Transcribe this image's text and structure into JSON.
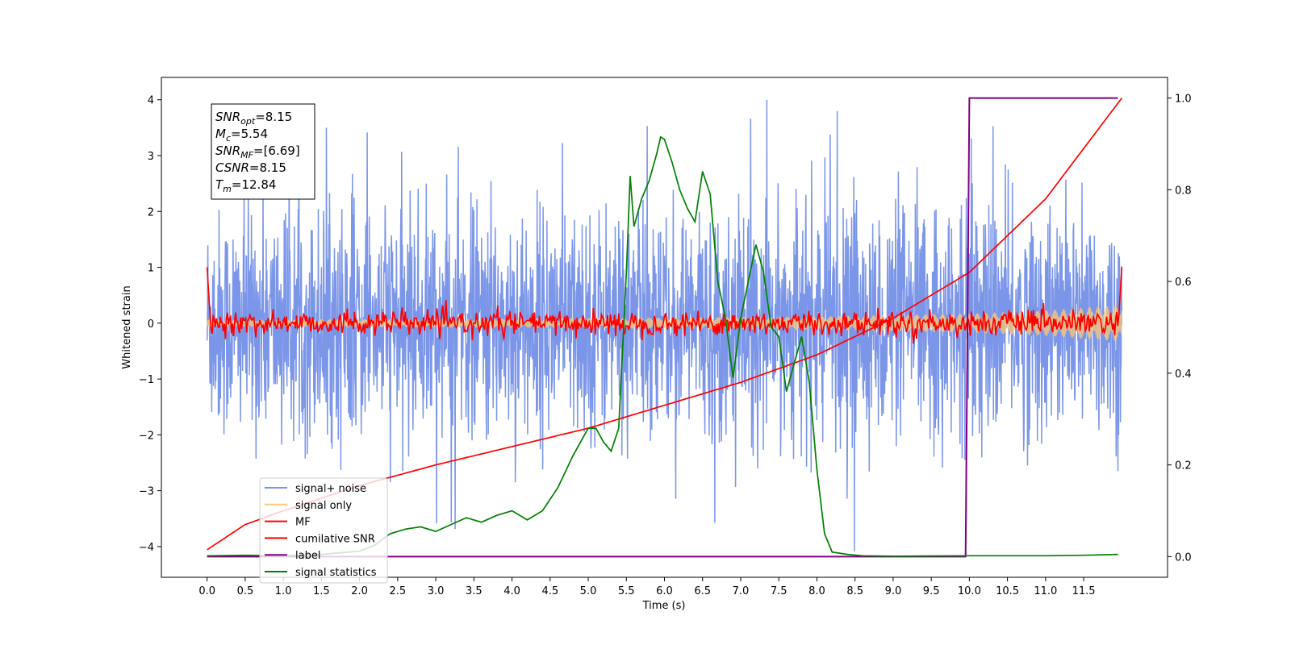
{
  "chart_data": {
    "type": "line",
    "xlabel": "Time (s)",
    "ylabel": "Whitened strain",
    "xlim": [
      -0.6,
      12.6
    ],
    "ylim": [
      -4.55,
      4.4
    ],
    "y2lim": [
      -0.045,
      1.045
    ],
    "x_ticks": [
      0.0,
      0.5,
      1.0,
      1.5,
      2.0,
      2.5,
      3.0,
      3.5,
      4.0,
      4.5,
      5.0,
      5.5,
      6.0,
      6.5,
      7.0,
      7.5,
      8.0,
      8.5,
      9.0,
      9.5,
      10.0,
      10.5,
      11.0,
      11.5
    ],
    "x_tick_labels": [
      "0.0",
      "0.5",
      "1.0",
      "1.5",
      "2.0",
      "2.5",
      "3.0",
      "3.5",
      "4.0",
      "4.5",
      "5.0",
      "5.5",
      "6.0",
      "6.5",
      "7.0",
      "7.5",
      "8.0",
      "8.5",
      "9.0",
      "9.5",
      "10.0",
      "10.5",
      "11.0",
      "11.5"
    ],
    "y_ticks": [
      -4,
      -3,
      -2,
      -1,
      0,
      1,
      2,
      3,
      4
    ],
    "y_tick_labels": [
      "−4",
      "−3",
      "−2",
      "−1",
      "0",
      "1",
      "2",
      "3",
      "4"
    ],
    "y2_ticks": [
      0.0,
      0.2,
      0.4,
      0.6,
      0.8,
      1.0
    ],
    "y2_tick_labels": [
      "0.0",
      "0.2",
      "0.4",
      "0.6",
      "0.8",
      "1.0"
    ],
    "grid": false,
    "legend_position": "lower-left",
    "series": [
      {
        "name": "signal+ noise",
        "axis": "left",
        "color": "#7b96e8",
        "style": "noise",
        "x_range": [
          0.0,
          12.0
        ],
        "typical_range": [
          -2.0,
          2.2
        ],
        "max": 4.0,
        "min": -4.15
      },
      {
        "name": "signal only",
        "axis": "left",
        "color": "#ffc875",
        "style": "chirp",
        "x": [
          0.0,
          4.0,
          8.0,
          10.0,
          11.0,
          12.0
        ],
        "amplitude": [
          0.06,
          0.08,
          0.12,
          0.17,
          0.23,
          0.33
        ]
      },
      {
        "name": "MF",
        "axis": "left",
        "color": "#ff0000",
        "style": "oscillation",
        "x": [
          0.0,
          0.05,
          11.95,
          12.0
        ],
        "values": [
          1.0,
          -0.1,
          -0.1,
          1.0
        ],
        "amplitude": 0.18
      },
      {
        "name": "cumilative SNR",
        "axis": "right",
        "color": "#ff0000",
        "x": [
          0.0,
          0.5,
          1.0,
          2.0,
          3.0,
          4.0,
          5.0,
          6.0,
          7.0,
          8.0,
          9.0,
          10.0,
          11.0,
          12.0
        ],
        "values": [
          0.015,
          0.07,
          0.1,
          0.155,
          0.2,
          0.24,
          0.28,
          0.33,
          0.38,
          0.44,
          0.52,
          0.62,
          0.78,
          1.0
        ]
      },
      {
        "name": "label",
        "axis": "right",
        "color": "#800080",
        "x": [
          0.0,
          9.95,
          10.0,
          11.0,
          11.95
        ],
        "values": [
          0.0,
          0.0,
          1.0,
          1.0,
          1.0
        ]
      },
      {
        "name": "signal statistics",
        "axis": "right",
        "color": "#008000",
        "x": [
          0.0,
          0.5,
          1.0,
          1.5,
          2.0,
          2.2,
          2.4,
          2.6,
          2.8,
          3.0,
          3.2,
          3.4,
          3.6,
          3.8,
          4.0,
          4.2,
          4.4,
          4.6,
          4.8,
          5.0,
          5.1,
          5.2,
          5.3,
          5.4,
          5.5,
          5.55,
          5.6,
          5.7,
          5.8,
          5.9,
          5.95,
          6.0,
          6.1,
          6.2,
          6.3,
          6.4,
          6.5,
          6.6,
          6.7,
          6.8,
          6.9,
          7.0,
          7.1,
          7.2,
          7.3,
          7.4,
          7.5,
          7.6,
          7.7,
          7.8,
          7.9,
          8.0,
          8.1,
          8.2,
          8.4,
          8.6,
          9.0,
          10.0,
          11.0,
          11.5,
          11.95
        ],
        "values": [
          0.002,
          0.003,
          0.002,
          0.005,
          0.012,
          0.025,
          0.05,
          0.06,
          0.065,
          0.055,
          0.07,
          0.085,
          0.075,
          0.09,
          0.1,
          0.08,
          0.1,
          0.15,
          0.22,
          0.28,
          0.28,
          0.25,
          0.23,
          0.28,
          0.62,
          0.83,
          0.72,
          0.78,
          0.82,
          0.88,
          0.915,
          0.91,
          0.86,
          0.8,
          0.76,
          0.73,
          0.84,
          0.79,
          0.6,
          0.52,
          0.39,
          0.52,
          0.6,
          0.68,
          0.62,
          0.5,
          0.48,
          0.36,
          0.42,
          0.48,
          0.38,
          0.19,
          0.05,
          0.01,
          0.005,
          0.002,
          0.001,
          0.002,
          0.002,
          0.003,
          0.005
        ]
      }
    ]
  },
  "stats_box": {
    "lines": [
      {
        "base": "SNR",
        "sub": "opt",
        "value": "=8.15"
      },
      {
        "base": "M",
        "sub": "c",
        "value": "=5.54"
      },
      {
        "base": "SNR",
        "sub": "MF",
        "value": "=[6.69]"
      },
      {
        "base": "CSNR",
        "sub": "",
        "value": "=8.15"
      },
      {
        "base": "T",
        "sub": "m",
        "value": "=12.84"
      }
    ]
  }
}
